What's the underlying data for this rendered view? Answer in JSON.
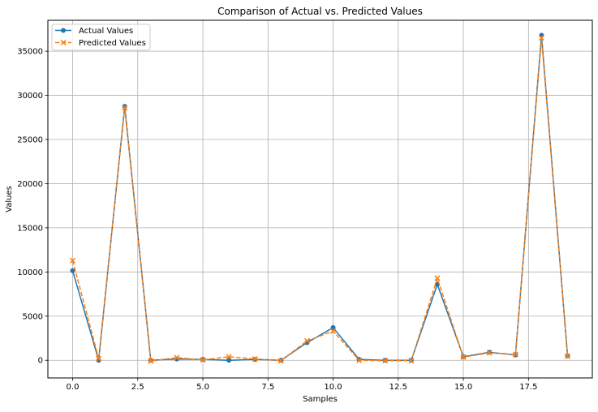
{
  "chart_data": {
    "type": "line",
    "title": "Comparison of Actual vs. Predicted Values",
    "xlabel": "Samples",
    "ylabel": "Values",
    "x": [
      0,
      1,
      2,
      3,
      4,
      5,
      6,
      7,
      8,
      9,
      10,
      11,
      12,
      13,
      14,
      15,
      16,
      17,
      18,
      19
    ],
    "xlim": [
      -0.95,
      19.95
    ],
    "ylim": [
      -2000,
      38500
    ],
    "xticks": [
      0.0,
      2.5,
      5.0,
      7.5,
      10.0,
      12.5,
      15.0,
      17.5
    ],
    "xtick_labels": [
      "0.0",
      "2.5",
      "5.0",
      "7.5",
      "10.0",
      "12.5",
      "15.0",
      "17.5"
    ],
    "yticks": [
      0,
      5000,
      10000,
      15000,
      20000,
      25000,
      30000,
      35000
    ],
    "ytick_labels": [
      "0",
      "5000",
      "10000",
      "15000",
      "20000",
      "25000",
      "30000",
      "35000"
    ],
    "grid": true,
    "legend_position": "top-left",
    "series": [
      {
        "name": "Actual Values",
        "color": "#1f77b4",
        "marker": "circle",
        "linestyle": "solid",
        "values": [
          10150,
          0,
          28750,
          0,
          150,
          100,
          0,
          100,
          0,
          2000,
          3700,
          100,
          0,
          0,
          8600,
          400,
          900,
          600,
          36800,
          500
        ]
      },
      {
        "name": "Predicted Values",
        "color": "#ff7f0e",
        "marker": "x",
        "linestyle": "dashed",
        "values": [
          11300,
          200,
          28600,
          -100,
          300,
          50,
          400,
          150,
          -50,
          2200,
          3300,
          0,
          -50,
          -50,
          9300,
          350,
          850,
          650,
          36500,
          450
        ]
      }
    ]
  }
}
